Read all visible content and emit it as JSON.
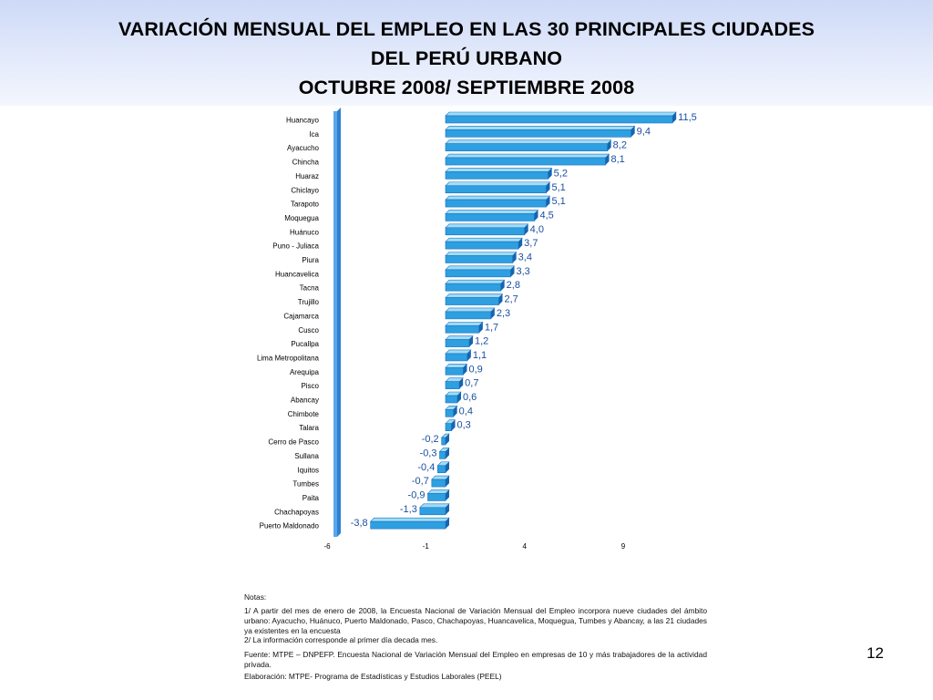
{
  "header": {
    "title_line1": "VARIACIÓN MENSUAL DEL EMPLEO EN LAS 30 PRINCIPALES CIUDADES",
    "title_line2": "DEL PERÚ URBANO",
    "title_line3": "OCTUBRE 2008/ SEPTIEMBRE 2008"
  },
  "colors": {
    "header_gradient_top": "#cdd9f7",
    "bar_front": "#2e9fe0",
    "bar_top": "#9fdcf7",
    "bar_side": "#1565b0",
    "axis_wall": "#2f7fd0",
    "label_text": "#1a4fa0"
  },
  "chart_data": {
    "type": "bar",
    "orientation": "horizontal",
    "style": "3d",
    "categories": [
      "Huancayo",
      "Ica",
      "Ayacucho",
      "Chincha",
      "Huaraz",
      "Chiclayo",
      "Tarapoto",
      "Moquegua",
      "Huánuco",
      "Puno - Juliaca",
      "Piura",
      "Huancavelica",
      "Tacna",
      "Trujillo",
      "Cajamarca",
      "Cusco",
      "Pucallpa",
      "Lima Metropolitana",
      "Arequipa",
      "Pisco",
      "Abancay",
      "Chimbote",
      "Talara",
      "Cerro de Pasco",
      "Sullana",
      "Iquitos",
      "Tumbes",
      "Paita",
      "Chachapoyas",
      "Puerto Maldonado"
    ],
    "values": [
      11.5,
      9.4,
      8.2,
      8.1,
      5.2,
      5.1,
      5.1,
      4.5,
      4.0,
      3.7,
      3.4,
      3.3,
      2.8,
      2.7,
      2.3,
      1.7,
      1.2,
      1.1,
      0.9,
      0.7,
      0.6,
      0.4,
      0.3,
      -0.2,
      -0.3,
      -0.4,
      -0.7,
      -0.9,
      -1.3,
      -3.8
    ],
    "value_labels": [
      "11,5",
      "9,4",
      "8,2",
      "8,1",
      "5,2",
      "5,1",
      "5,1",
      "4,5",
      "4,0",
      "3,7",
      "3,4",
      "3,3",
      "2,8",
      "2,7",
      "2,3",
      "1,7",
      "1,2",
      "1,1",
      "0,9",
      "0,7",
      "0,6",
      "0,4",
      "0,3",
      "-0,2",
      "-0,3",
      "-0,4",
      "-0,7",
      "-0,9",
      "-1,3",
      "-3,8"
    ],
    "x_ticks": [
      -6,
      -1,
      4,
      9
    ],
    "xlim": [
      -6,
      12.5
    ],
    "grid": false,
    "legend": "none"
  },
  "notes": {
    "heading": "Notas:",
    "note1": "1/  A partir del mes de enero de 2008, la Encuesta Nacional de Variación Mensual del Empleo incorpora nueve ciudades del ámbito urbano: Ayacucho, Huánuco, Puerto Maldonado, Pasco, Chachapoyas, Huancavelica, Moquegua, Tumbes y Abancay, a las 21 ciudades ya existentes en la encuesta",
    "note2": "2/ La información corresponde al primer día decada mes.",
    "source": "Fuente: MTPE – DNPEFP. Encuesta Nacional de Variación Mensual del Empleo en empresas de 10 y más trabajadores de la actividad privada.",
    "elaboration": "Elaboración: MTPE- Programa de Estadísticas y Estudios Laborales  (PEEL)"
  },
  "page_number": "12"
}
